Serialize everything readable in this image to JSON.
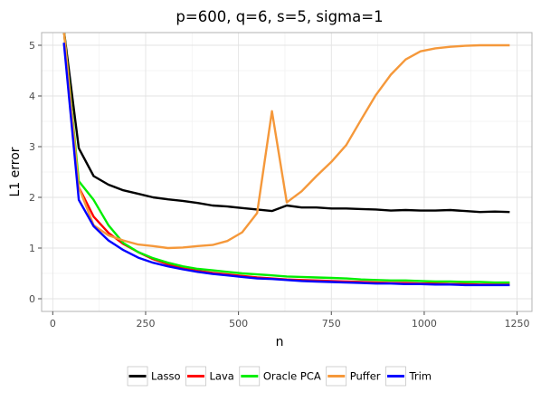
{
  "chart_data": {
    "type": "line",
    "title": "p=600, q=6, s=5, sigma=1",
    "xlabel": "n",
    "ylabel": "L1 error",
    "xlim": [
      -30,
      1290
    ],
    "ylim": [
      -0.25,
      5.25
    ],
    "xticks": [
      0,
      250,
      500,
      750,
      1000,
      1250
    ],
    "yticks": [
      0,
      1,
      2,
      3,
      4,
      5
    ],
    "grid": true,
    "legend_position": "bottom",
    "x": [
      30,
      70,
      110,
      150,
      190,
      230,
      270,
      310,
      350,
      390,
      430,
      470,
      510,
      550,
      590,
      630,
      670,
      710,
      750,
      790,
      830,
      870,
      910,
      950,
      990,
      1030,
      1070,
      1110,
      1150,
      1190,
      1230
    ],
    "series": [
      {
        "name": "Lasso",
        "color": "#000000",
        "values": [
          5.3,
          2.97,
          2.42,
          2.25,
          2.14,
          2.07,
          2.0,
          1.96,
          1.93,
          1.89,
          1.84,
          1.82,
          1.79,
          1.76,
          1.73,
          1.84,
          1.8,
          1.8,
          1.78,
          1.78,
          1.77,
          1.76,
          1.74,
          1.75,
          1.74,
          1.74,
          1.75,
          1.73,
          1.71,
          1.72,
          1.71
        ]
      },
      {
        "name": "Lava",
        "color": "#ff0000",
        "values": [
          5.3,
          2.2,
          1.62,
          1.3,
          1.08,
          0.92,
          0.78,
          0.68,
          0.6,
          0.55,
          0.51,
          0.48,
          0.45,
          0.42,
          0.4,
          0.38,
          0.37,
          0.36,
          0.35,
          0.34,
          0.33,
          0.32,
          0.31,
          0.31,
          0.3,
          0.3,
          0.29,
          0.29,
          0.28,
          0.28,
          0.28
        ]
      },
      {
        "name": "Oracle PCA",
        "color": "#00ee00",
        "values": [
          5.3,
          2.32,
          1.95,
          1.45,
          1.1,
          0.92,
          0.8,
          0.71,
          0.64,
          0.59,
          0.56,
          0.53,
          0.5,
          0.48,
          0.46,
          0.44,
          0.43,
          0.42,
          0.41,
          0.4,
          0.38,
          0.37,
          0.36,
          0.36,
          0.35,
          0.34,
          0.34,
          0.33,
          0.33,
          0.32,
          0.32
        ]
      },
      {
        "name": "Puffer",
        "color": "#f5983a",
        "values": [
          5.3,
          2.2,
          1.45,
          1.25,
          1.15,
          1.07,
          1.04,
          1.0,
          1.01,
          1.04,
          1.06,
          1.14,
          1.31,
          1.69,
          3.7,
          1.9,
          2.12,
          2.42,
          2.7,
          3.03,
          3.53,
          4.02,
          4.42,
          4.72,
          4.88,
          4.94,
          4.97,
          4.99,
          5.0,
          5.0,
          5.0
        ]
      },
      {
        "name": "Trim",
        "color": "#0000ff",
        "values": [
          5.05,
          1.95,
          1.43,
          1.15,
          0.96,
          0.81,
          0.71,
          0.64,
          0.58,
          0.53,
          0.49,
          0.46,
          0.43,
          0.4,
          0.39,
          0.37,
          0.35,
          0.34,
          0.33,
          0.32,
          0.31,
          0.3,
          0.3,
          0.29,
          0.29,
          0.28,
          0.28,
          0.27,
          0.27,
          0.27,
          0.27
        ]
      }
    ]
  }
}
